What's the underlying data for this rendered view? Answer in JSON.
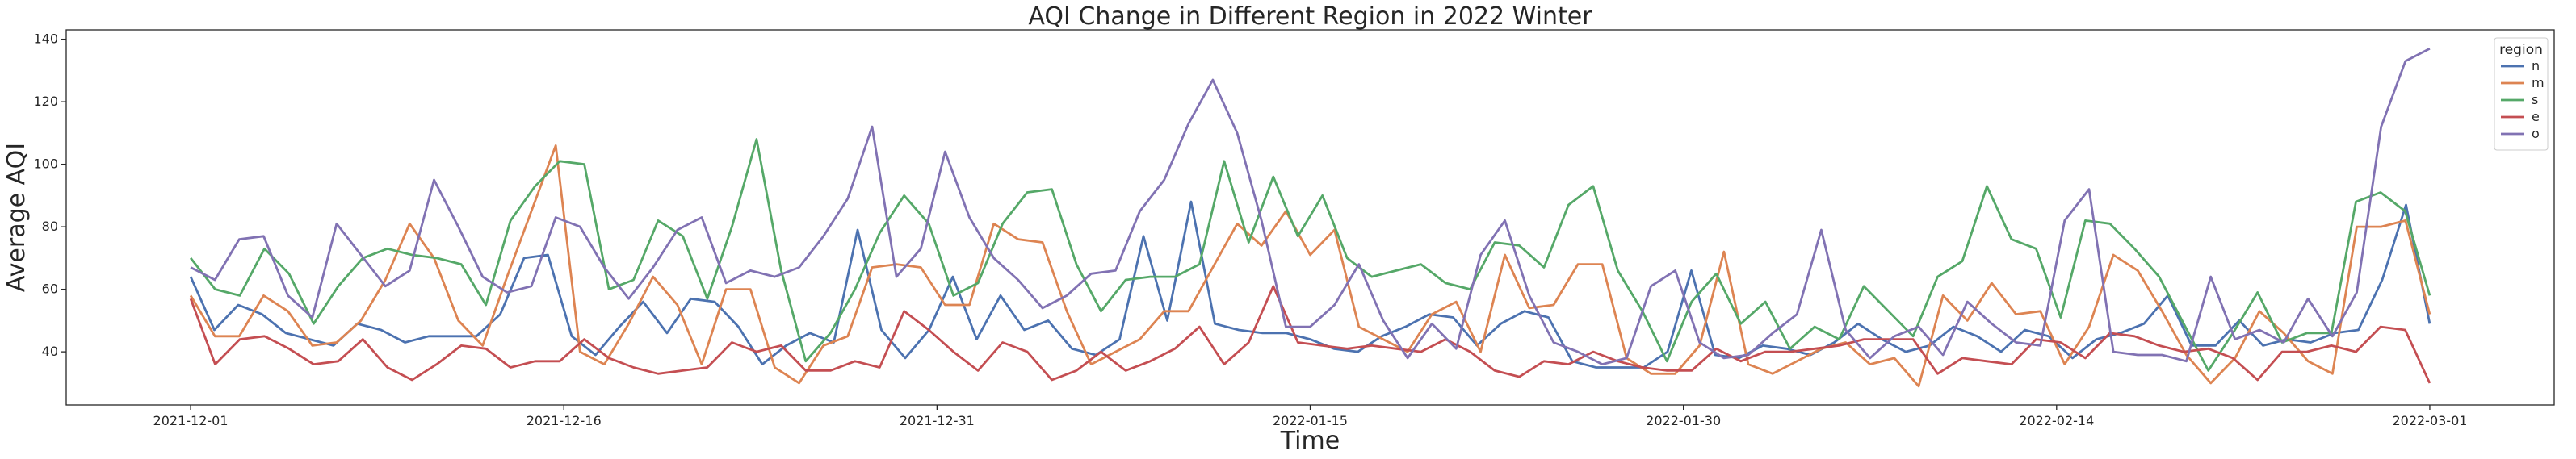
{
  "chart_data": {
    "type": "line",
    "title": "AQI Change in Different Region in 2022 Winter",
    "xlabel": "Time",
    "ylabel": "Average AQI",
    "x_start": "2021-12-01",
    "x_end": "2022-03-01",
    "xlim": [
      "2021-11-26",
      "2022-03-06"
    ],
    "ylim": [
      23,
      143
    ],
    "x_ticks": [
      "2021-12-01",
      "2021-12-16",
      "2021-12-31",
      "2022-01-15",
      "2022-01-30",
      "2022-02-14",
      "2022-03-01"
    ],
    "y_ticks": [
      40,
      60,
      80,
      100,
      120,
      140
    ],
    "grid": false,
    "legend": {
      "title": "region",
      "position": "top-right"
    },
    "series": [
      {
        "name": "n",
        "color": "#4c72b0",
        "values": [
          64,
          47,
          55,
          52,
          46,
          44,
          42,
          49,
          47,
          43,
          45,
          45,
          45,
          52,
          70,
          71,
          45,
          39,
          48,
          56,
          46,
          57,
          56,
          48,
          36,
          42,
          46,
          43,
          79,
          47,
          38,
          47,
          64,
          44,
          58,
          47,
          50,
          41,
          39,
          44,
          77,
          50,
          88,
          49,
          47,
          46,
          46,
          44,
          41,
          40,
          45,
          48,
          52,
          51,
          42,
          49,
          53,
          51,
          37,
          35,
          35,
          35,
          40,
          66,
          39,
          38,
          42,
          41,
          39,
          43,
          49,
          44,
          40,
          42,
          48,
          45,
          40,
          47,
          45,
          38,
          44,
          46,
          49,
          58,
          42,
          42,
          50,
          42,
          44,
          43,
          46,
          47,
          63,
          87,
          49
        ]
      },
      {
        "name": "m",
        "color": "#dd8452",
        "values": [
          58,
          45,
          45,
          58,
          53,
          42,
          43,
          50,
          63,
          81,
          70,
          50,
          42,
          64,
          85,
          106,
          40,
          36,
          49,
          64,
          55,
          36,
          60,
          60,
          35,
          30,
          42,
          45,
          67,
          68,
          67,
          55,
          55,
          81,
          76,
          75,
          53,
          36,
          40,
          44,
          53,
          53,
          67,
          81,
          74,
          85,
          71,
          79,
          48,
          44,
          40,
          52,
          56,
          40,
          71,
          54,
          55,
          68,
          68,
          38,
          33,
          33,
          42,
          72,
          36,
          33,
          37,
          41,
          43,
          36,
          38,
          29,
          58,
          50,
          62,
          52,
          53,
          36,
          48,
          71,
          66,
          53,
          39,
          30,
          38,
          53,
          46,
          37,
          33,
          80,
          80,
          82,
          52
        ]
      },
      {
        "name": "s",
        "color": "#55a868",
        "values": [
          70,
          60,
          58,
          73,
          65,
          49,
          61,
          70,
          73,
          71,
          70,
          68,
          55,
          82,
          93,
          101,
          100,
          60,
          63,
          82,
          77,
          57,
          80,
          108,
          66,
          37,
          46,
          60,
          78,
          90,
          81,
          58,
          62,
          81,
          91,
          92,
          68,
          53,
          63,
          64,
          64,
          68,
          101,
          75,
          96,
          77,
          90,
          70,
          64,
          66,
          68,
          62,
          60,
          75,
          74,
          67,
          87,
          93,
          66,
          53,
          37,
          56,
          65,
          49,
          56,
          41,
          48,
          44,
          61,
          53,
          45,
          64,
          69,
          93,
          76,
          73,
          51,
          82,
          81,
          73,
          64,
          49,
          34,
          46,
          59,
          43,
          46,
          46,
          88,
          91,
          85,
          58
        ]
      },
      {
        "name": "e",
        "color": "#c44e52",
        "values": [
          57,
          36,
          44,
          45,
          41,
          36,
          37,
          44,
          35,
          31,
          36,
          42,
          41,
          35,
          37,
          37,
          44,
          38,
          35,
          33,
          34,
          35,
          43,
          40,
          42,
          34,
          34,
          37,
          35,
          53,
          47,
          40,
          34,
          43,
          40,
          31,
          34,
          40,
          34,
          37,
          41,
          48,
          36,
          43,
          61,
          43,
          42,
          41,
          42,
          41,
          40,
          44,
          40,
          34,
          32,
          37,
          36,
          40,
          37,
          35,
          34,
          34,
          41,
          37,
          40,
          40,
          41,
          42,
          44,
          44,
          44,
          33,
          38,
          37,
          36,
          44,
          43,
          38,
          46,
          45,
          42,
          40,
          41,
          38,
          31,
          40,
          40,
          42,
          40,
          48,
          47,
          30
        ]
      },
      {
        "name": "o",
        "color": "#8172b3",
        "values": [
          67,
          63,
          76,
          77,
          58,
          51,
          81,
          71,
          61,
          66,
          95,
          80,
          64,
          59,
          61,
          83,
          80,
          67,
          57,
          67,
          79,
          83,
          62,
          66,
          64,
          67,
          77,
          89,
          112,
          64,
          73,
          104,
          83,
          70,
          63,
          54,
          58,
          65,
          66,
          85,
          95,
          113,
          127,
          110,
          82,
          48,
          48,
          55,
          68,
          50,
          38,
          49,
          41,
          71,
          82,
          58,
          43,
          40,
          36,
          38,
          61,
          66,
          43,
          38,
          39,
          46,
          52,
          79,
          47,
          38,
          45,
          48,
          39,
          56,
          49,
          43,
          42,
          82,
          92,
          40,
          39,
          39,
          37,
          64,
          44,
          47,
          43,
          57,
          45,
          59,
          112,
          133,
          137
        ]
      }
    ]
  }
}
